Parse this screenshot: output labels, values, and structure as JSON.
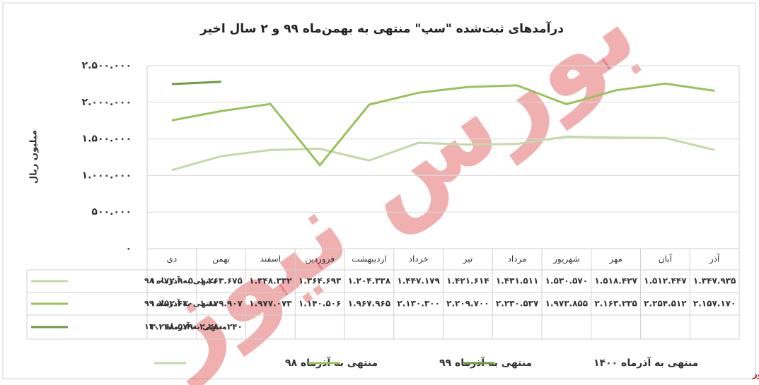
{
  "chart_data": {
    "type": "line",
    "title": "درآمدهای ثبت‌شده \"سپ\" منتهی به بهمن‌ماه ۹۹ و ۲ سال اخیر",
    "y_label": "میلیون ریال",
    "watermark": "بورس نیوز",
    "source": "بورس نیوز",
    "categories": [
      "دی",
      "بهمن",
      "اسفند",
      "فروردین",
      "اردیبهشت",
      "خرداد",
      "تیر",
      "مرداد",
      "شهریور",
      "مهر",
      "آبان",
      "آذر"
    ],
    "ylim": [
      0,
      2500000
    ],
    "yticks": [
      {
        "value": 0,
        "label": "۰"
      },
      {
        "value": 500000,
        "label": "۵۰۰.۰۰۰"
      },
      {
        "value": 1000000,
        "label": "۱.۰۰۰.۰۰۰"
      },
      {
        "value": 1500000,
        "label": "۱.۵۰۰.۰۰۰"
      },
      {
        "value": 2000000,
        "label": "۲.۰۰۰.۰۰۰"
      },
      {
        "value": 2500000,
        "label": "۲.۵۰۰.۰۰۰"
      }
    ],
    "grid": true,
    "series": [
      {
        "name": "منتهی به آذرماه ۹۸",
        "color": "#c5d9a8",
        "values": [
          1072905,
          1263675,
          1348332,
          1364693,
          1204338,
          1447179,
          1421614,
          1431511,
          1530570,
          1518427,
          1512447,
          1347935
        ],
        "value_labels": [
          "۱.۰۷۲.۹۰۵",
          "۱.۲۶۳.۶۷۵",
          "۱.۳۴۸.۳۳۲",
          "۱.۳۶۴.۶۹۳",
          "۱.۲۰۴.۳۳۸",
          "۱.۴۴۷.۱۷۹",
          "۱.۴۲۱.۶۱۴",
          "۱.۴۳۱.۵۱۱",
          "۱.۵۳۰.۵۷۰",
          "۱.۵۱۸.۴۲۷",
          "۱.۵۱۲.۴۴۷",
          "۱.۳۴۷.۹۳۵"
        ]
      },
      {
        "name": "منتهی به آذرماه ۹۹",
        "color": "#9bc25a",
        "values": [
          1752630,
          1879907,
          1977073,
          1140506,
          1967965,
          2130300,
          2209700,
          2230537,
          1973855,
          2163235,
          2254512,
          2157170
        ],
        "value_labels": [
          "۱.۷۵۲.۶۳۰",
          "۱.۸۷۹.۹۰۷",
          "۱.۹۷۷.۰۷۳",
          "۱.۱۴۰.۵۰۶",
          "۱.۹۶۷.۹۶۵",
          "۲.۱۳۰.۳۰۰",
          "۲.۲۰۹.۷۰۰",
          "۲.۲۳۰.۵۳۷",
          "۱.۹۷۳.۸۵۵",
          "۲.۱۶۳.۲۳۵",
          "۲.۲۵۴.۵۱۲",
          "۲.۱۵۷.۱۷۰"
        ]
      },
      {
        "name": "منتهی به آذرماه ۱۴۰۰",
        "color": "#6f9a3f",
        "values": [
          2248579,
          2280240,
          null,
          null,
          null,
          null,
          null,
          null,
          null,
          null,
          null,
          null
        ],
        "value_labels": [
          "۲.۲۴۸.۵۷۹",
          "۲.۲۸۰.۲۴۰",
          null,
          null,
          null,
          null,
          null,
          null,
          null,
          null,
          null,
          null
        ]
      }
    ]
  }
}
